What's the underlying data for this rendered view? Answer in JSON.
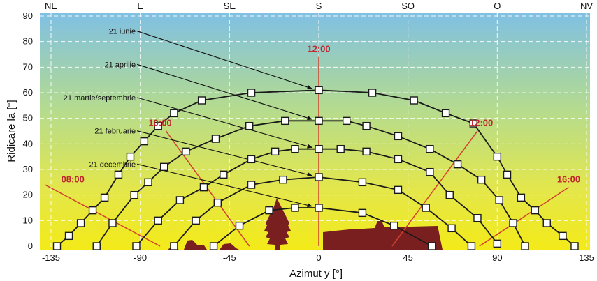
{
  "chart_data": {
    "type": "line",
    "xlabel": "Azimut y [°]",
    "ylabel": "Ridicare la [°]",
    "xlim": [
      -135,
      135
    ],
    "ylim": [
      0,
      90
    ],
    "x_ticks": [
      "-135",
      "-90",
      "-45",
      "0",
      "45",
      "90",
      "135"
    ],
    "y_ticks": [
      "0",
      "10",
      "20",
      "30",
      "40",
      "50",
      "60",
      "70",
      "80",
      "90"
    ],
    "compass": [
      {
        "label": "NE",
        "azimuth": -135
      },
      {
        "label": "E",
        "azimuth": -90
      },
      {
        "label": "SE",
        "azimuth": -45
      },
      {
        "label": "S",
        "azimuth": 0
      },
      {
        "label": "SO",
        "azimuth": 45
      },
      {
        "label": "O",
        "azimuth": 90
      },
      {
        "label": "NV",
        "azimuth": 135
      }
    ],
    "series": [
      {
        "name": "21 iunie",
        "label_x": -105,
        "label_y": 83,
        "points": [
          [
            -132,
            0
          ],
          [
            -126,
            4
          ],
          [
            -120,
            9
          ],
          [
            -114,
            14
          ],
          [
            -108,
            19
          ],
          [
            -101,
            28
          ],
          [
            -95,
            35
          ],
          [
            -88,
            41
          ],
          [
            -81,
            47
          ],
          [
            -73,
            52
          ],
          [
            -59,
            57
          ],
          [
            -34,
            60
          ],
          [
            0,
            61
          ],
          [
            27,
            60
          ],
          [
            48,
            57
          ],
          [
            64,
            52
          ],
          [
            78,
            48
          ],
          [
            90,
            35
          ],
          [
            95,
            28
          ],
          [
            102,
            19
          ],
          [
            109,
            14
          ],
          [
            115,
            9
          ],
          [
            123,
            4
          ],
          [
            129,
            0
          ]
        ]
      },
      {
        "name": "21 aprilie",
        "label_x": -105,
        "label_y": 70,
        "points": [
          [
            -112,
            0
          ],
          [
            -104,
            9
          ],
          [
            -93,
            20
          ],
          [
            -86,
            25
          ],
          [
            -78,
            31
          ],
          [
            -67,
            37
          ],
          [
            -52,
            42
          ],
          [
            -35,
            47
          ],
          [
            -17,
            49
          ],
          [
            0,
            49
          ],
          [
            14,
            49
          ],
          [
            24,
            47
          ],
          [
            40,
            43
          ],
          [
            56,
            38
          ],
          [
            70,
            32
          ],
          [
            82,
            26
          ],
          [
            91,
            18
          ],
          [
            98,
            9
          ],
          [
            104,
            0
          ]
        ]
      },
      {
        "name": "21 martie/septembrie",
        "label_x": -105,
        "label_y": 57,
        "points": [
          [
            -92,
            0
          ],
          [
            -81,
            10
          ],
          [
            -70,
            18
          ],
          [
            -58,
            23
          ],
          [
            -48,
            28
          ],
          [
            -34,
            34
          ],
          [
            -22,
            37
          ],
          [
            -12,
            38
          ],
          [
            0,
            38
          ],
          [
            11,
            38
          ],
          [
            24,
            37
          ],
          [
            40,
            34
          ],
          [
            56,
            29
          ],
          [
            66,
            20
          ],
          [
            80,
            11
          ],
          [
            90,
            1
          ]
        ]
      },
      {
        "name": "21 februarie",
        "label_x": -105,
        "label_y": 44,
        "points": [
          [
            -73,
            0
          ],
          [
            -62,
            10
          ],
          [
            -51,
            17
          ],
          [
            -34,
            24
          ],
          [
            -18,
            26
          ],
          [
            0,
            27
          ],
          [
            22,
            25
          ],
          [
            40,
            22
          ],
          [
            54,
            15
          ],
          [
            67,
            7
          ],
          [
            77,
            0
          ]
        ]
      },
      {
        "name": "21 decembrie",
        "label_x": -105,
        "label_y": 31,
        "points": [
          [
            -53,
            0
          ],
          [
            -40,
            8
          ],
          [
            -25,
            14
          ],
          [
            -12,
            15
          ],
          [
            0,
            15
          ],
          [
            22,
            13
          ],
          [
            38,
            8
          ],
          [
            57,
            0
          ]
        ]
      }
    ],
    "time_lines": [
      {
        "label": "08:00",
        "label_x": -124,
        "label_y": 25,
        "from": [
          -138,
          24
        ],
        "to": [
          -80,
          0
        ]
      },
      {
        "label": "10:00",
        "label_x": -80,
        "label_y": 47,
        "from": [
          -77,
          45
        ],
        "to": [
          -35,
          0
        ]
      },
      {
        "label": "12:00",
        "label_x": 0,
        "label_y": 76,
        "from": [
          0,
          74
        ],
        "to": [
          0,
          0
        ]
      },
      {
        "label": "12:00",
        "label_x": 82,
        "label_y": 47,
        "from": [
          80,
          45
        ],
        "to": [
          37,
          0
        ]
      },
      {
        "label": "16:00",
        "label_x": 126,
        "label_y": 25,
        "from": [
          126,
          23
        ],
        "to": [
          81,
          0
        ]
      }
    ],
    "grid": true
  }
}
